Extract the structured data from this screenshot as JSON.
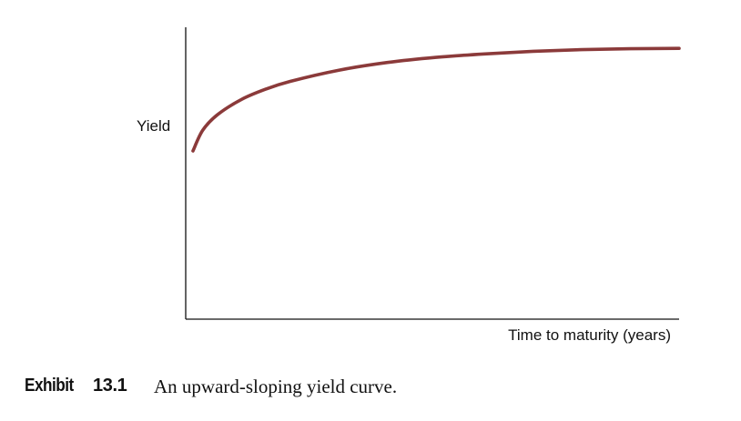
{
  "chart_data": {
    "type": "line",
    "title": "",
    "ylabel": "Yield",
    "xlabel": "Time to maturity (years)",
    "grid": false,
    "legend": "none",
    "series_color": "#8B3A3A",
    "axis_color": "#111111",
    "series": [
      {
        "x": [
          0,
          2,
          5,
          10,
          15,
          20,
          30,
          40,
          50,
          60,
          70,
          80,
          90,
          100
        ],
        "y": [
          0.38,
          0.5,
          0.59,
          0.68,
          0.74,
          0.785,
          0.85,
          0.895,
          0.925,
          0.945,
          0.96,
          0.97,
          0.975,
          0.977
        ]
      }
    ],
    "xlim": [
      0,
      100
    ],
    "ylim": [
      -0.6,
      1.1
    ]
  },
  "caption": {
    "label": "Exhibit",
    "number": "13.1",
    "text": "An upward-sloping yield curve."
  }
}
